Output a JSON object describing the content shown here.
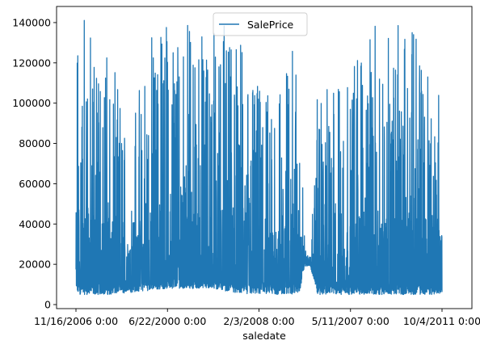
{
  "chart_data": {
    "type": "line",
    "xlabel": "saledate",
    "ylabel": "",
    "x_tick_labels": [
      "11/16/2006 0:00",
      "6/22/2000 0:00",
      "2/3/2008 0:00",
      "5/11/2007 0:00",
      "10/4/2011 0:00"
    ],
    "y_ticks": [
      0,
      20000,
      40000,
      60000,
      80000,
      100000,
      120000,
      140000
    ],
    "ylim": [
      -2000,
      148000
    ],
    "legend": {
      "position": "top-center"
    },
    "grid": false,
    "series": [
      {
        "name": "SalePrice",
        "color": "#1f77b4",
        "min_value": 4750,
        "max_value": 142000,
        "envelope": [
          {
            "x": 0.0,
            "low": 5000,
            "high": 141000
          },
          {
            "x": 0.05,
            "low": 5000,
            "high": 142000
          },
          {
            "x": 0.1,
            "low": 5000,
            "high": 120000
          },
          {
            "x": 0.15,
            "low": 6000,
            "high": 85000
          },
          {
            "x": 0.2,
            "low": 7000,
            "high": 140000
          },
          {
            "x": 0.25,
            "low": 8000,
            "high": 140000
          },
          {
            "x": 0.3,
            "low": 8000,
            "high": 140000
          },
          {
            "x": 0.35,
            "low": 8000,
            "high": 140000
          },
          {
            "x": 0.4,
            "low": 7000,
            "high": 140000
          },
          {
            "x": 0.45,
            "low": 5500,
            "high": 130000
          },
          {
            "x": 0.5,
            "low": 5000,
            "high": 110000
          },
          {
            "x": 0.55,
            "low": 5000,
            "high": 110000
          },
          {
            "x": 0.58,
            "low": 5000,
            "high": 125000
          },
          {
            "x": 0.61,
            "low": 5500,
            "high": 128000
          },
          {
            "x": 0.625,
            "low": 19000,
            "high": 30000
          },
          {
            "x": 0.64,
            "low": 19000,
            "high": 20000
          },
          {
            "x": 0.66,
            "low": 5000,
            "high": 106000
          },
          {
            "x": 0.7,
            "low": 5000,
            "high": 108000
          },
          {
            "x": 0.75,
            "low": 5000,
            "high": 120000
          },
          {
            "x": 0.8,
            "low": 5000,
            "high": 140000
          },
          {
            "x": 0.85,
            "low": 5000,
            "high": 140000
          },
          {
            "x": 0.9,
            "low": 5000,
            "high": 140000
          },
          {
            "x": 0.95,
            "low": 5000,
            "high": 140000
          },
          {
            "x": 1.0,
            "low": 5000,
            "high": 110000
          }
        ]
      }
    ]
  }
}
